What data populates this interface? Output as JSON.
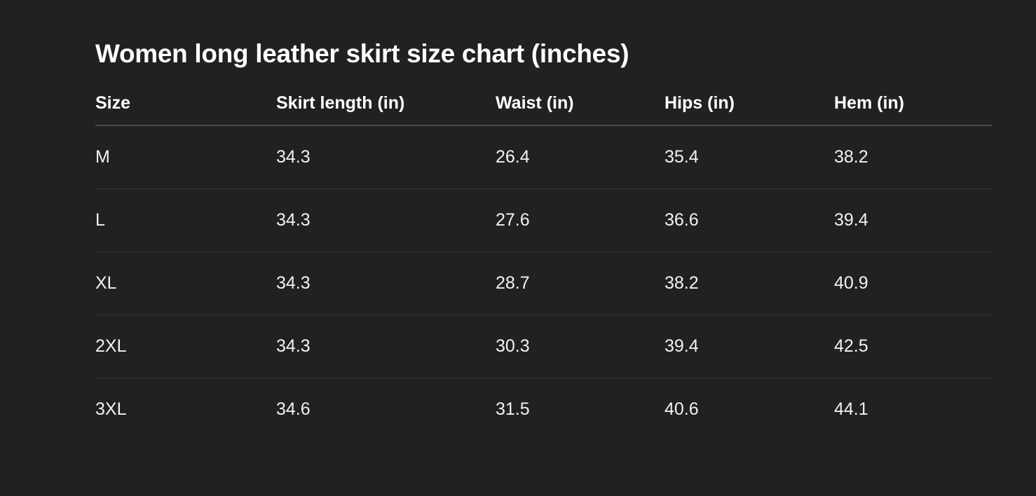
{
  "title": "Women long leather skirt size chart (inches)",
  "table": {
    "headers": [
      "Size",
      "Skirt length (in)",
      "Waist (in)",
      "Hips (in)",
      "Hem (in)"
    ],
    "rows": [
      [
        "M",
        "34.3",
        "26.4",
        "35.4",
        "38.2"
      ],
      [
        "L",
        "34.3",
        "27.6",
        "36.6",
        "39.4"
      ],
      [
        "XL",
        "34.3",
        "28.7",
        "38.2",
        "40.9"
      ],
      [
        "2XL",
        "34.3",
        "30.3",
        "39.4",
        "42.5"
      ],
      [
        "3XL",
        "34.6",
        "31.5",
        "40.6",
        "44.1"
      ]
    ]
  }
}
